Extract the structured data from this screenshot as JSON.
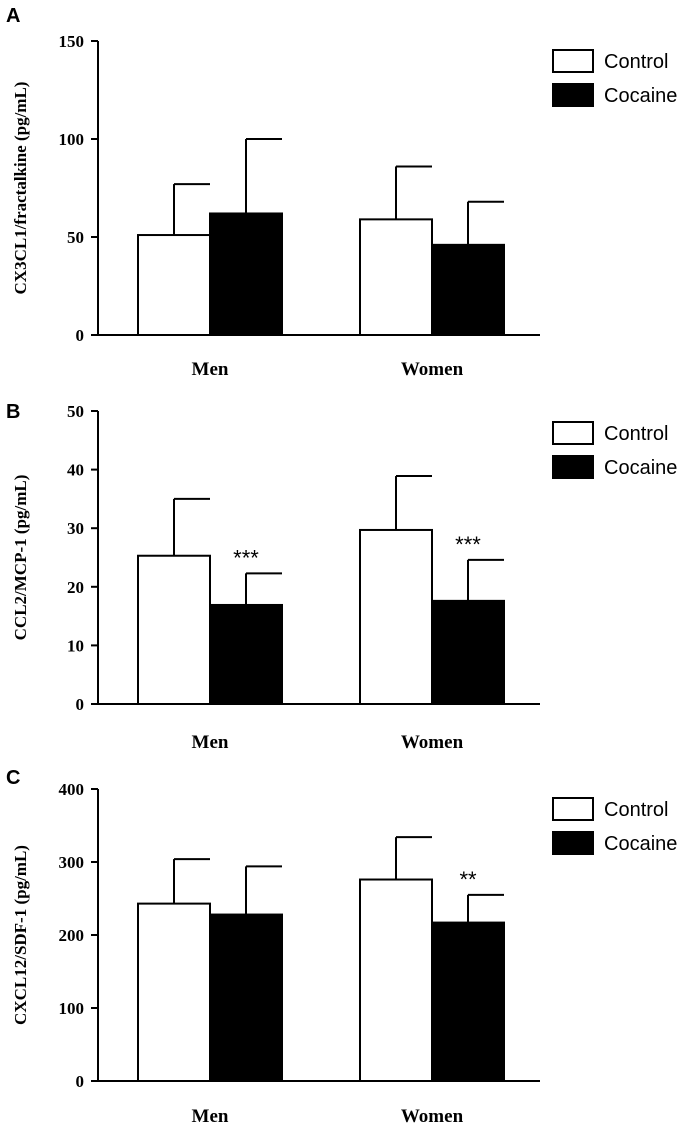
{
  "chart_data": [
    {
      "type": "bar",
      "panel_label": "A",
      "ylabel": "CX3CL1/fractalkine (pg/mL)",
      "categories": [
        "Men",
        "Women"
      ],
      "ylim": [
        0,
        150
      ],
      "yticks": [
        0,
        50,
        100,
        150
      ],
      "series": [
        {
          "name": "Control",
          "values": [
            51,
            59
          ],
          "errors": [
            26,
            27
          ],
          "color": "#ffffff"
        },
        {
          "name": "Cocaine",
          "values": [
            62,
            46
          ],
          "errors": [
            38,
            22
          ],
          "color": "#000000"
        }
      ],
      "significance": [
        [
          "",
          ""
        ],
        [
          "",
          ""
        ]
      ],
      "legend_position": "top-right"
    },
    {
      "type": "bar",
      "panel_label": "B",
      "ylabel": "CCL2/MCP-1 (pg/mL)",
      "categories": [
        "Men",
        "Women"
      ],
      "ylim": [
        0,
        50
      ],
      "yticks": [
        0,
        10,
        20,
        30,
        40,
        50
      ],
      "series": [
        {
          "name": "Control",
          "values": [
            25.3,
            29.7
          ],
          "errors": [
            9.7,
            9.2
          ],
          "color": "#ffffff"
        },
        {
          "name": "Cocaine",
          "values": [
            16.9,
            17.6
          ],
          "errors": [
            5.4,
            7.0
          ],
          "color": "#000000"
        }
      ],
      "significance": [
        [
          "",
          "***"
        ],
        [
          "",
          "***"
        ]
      ],
      "legend_position": "top-right"
    },
    {
      "type": "bar",
      "panel_label": "C",
      "ylabel": "CXCL12/SDF-1 (pg/mL)",
      "categories": [
        "Men",
        "Women"
      ],
      "ylim": [
        0,
        400
      ],
      "yticks": [
        0,
        100,
        200,
        300,
        400
      ],
      "series": [
        {
          "name": "Control",
          "values": [
            243,
            276
          ],
          "errors": [
            61,
            58
          ],
          "color": "#ffffff"
        },
        {
          "name": "Cocaine",
          "values": [
            228,
            217
          ],
          "errors": [
            66,
            38
          ],
          "color": "#000000"
        }
      ],
      "significance": [
        [
          "",
          ""
        ],
        [
          "",
          "**"
        ]
      ],
      "legend_position": "top-right"
    }
  ]
}
